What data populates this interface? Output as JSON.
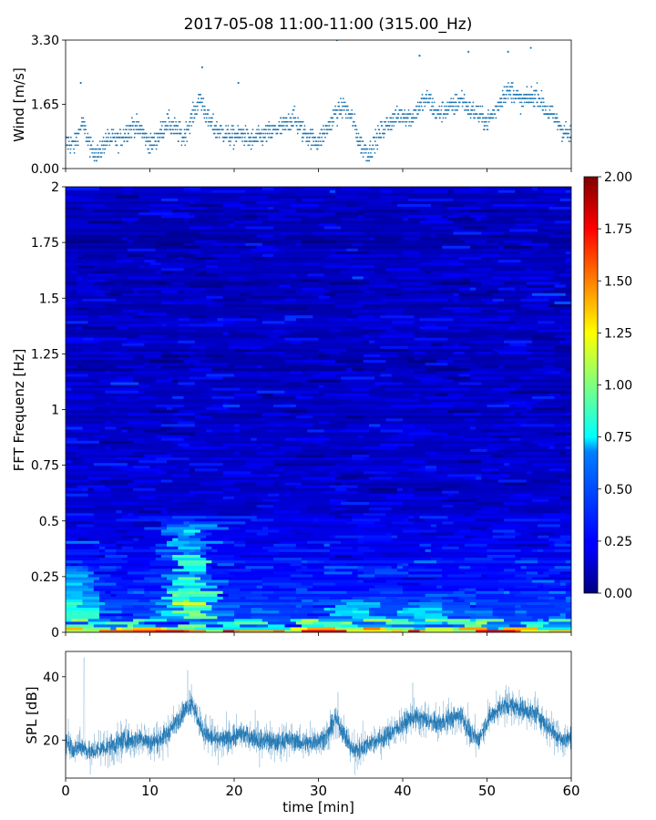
{
  "figure": {
    "title": "2017-05-08 11:00-11:00 (315.00_Hz)"
  },
  "chart_data": [
    {
      "id": "wind",
      "type": "scatter",
      "ylabel": "Wind [m/s]",
      "ylim": [
        0,
        3.3
      ],
      "xlim": [
        0,
        60
      ],
      "yticks": [
        "0.00",
        "1.65",
        "3.30"
      ],
      "marker_color": "#1f77b4",
      "trend": [
        [
          0,
          0.7
        ],
        [
          1,
          0.6
        ],
        [
          2,
          1.2
        ],
        [
          3,
          0.5
        ],
        [
          4,
          0.4
        ],
        [
          5,
          0.8
        ],
        [
          6,
          0.7
        ],
        [
          7,
          0.9
        ],
        [
          8,
          1.1
        ],
        [
          9,
          1.0
        ],
        [
          10,
          0.6
        ],
        [
          11,
          0.8
        ],
        [
          12,
          1.2
        ],
        [
          13,
          1.0
        ],
        [
          14,
          0.8
        ],
        [
          15,
          1.3
        ],
        [
          16,
          1.8
        ],
        [
          17,
          1.2
        ],
        [
          18,
          1.0
        ],
        [
          19,
          0.9
        ],
        [
          20,
          0.8
        ],
        [
          21,
          0.9
        ],
        [
          22,
          0.7
        ],
        [
          23,
          0.8
        ],
        [
          24,
          0.9
        ],
        [
          25,
          1.0
        ],
        [
          26,
          1.1
        ],
        [
          27,
          1.3
        ],
        [
          28,
          1.0
        ],
        [
          29,
          0.8
        ],
        [
          30,
          0.7
        ],
        [
          31,
          1.0
        ],
        [
          32,
          1.4
        ],
        [
          33,
          1.6
        ],
        [
          34,
          1.3
        ],
        [
          35,
          0.6
        ],
        [
          36,
          0.4
        ],
        [
          37,
          0.8
        ],
        [
          38,
          1.1
        ],
        [
          39,
          1.3
        ],
        [
          40,
          1.4
        ],
        [
          41,
          1.3
        ],
        [
          42,
          1.6
        ],
        [
          43,
          1.8
        ],
        [
          44,
          1.4
        ],
        [
          45,
          1.5
        ],
        [
          46,
          1.6
        ],
        [
          47,
          1.8
        ],
        [
          48,
          1.5
        ],
        [
          49,
          1.4
        ],
        [
          50,
          1.2
        ],
        [
          51,
          1.5
        ],
        [
          52,
          1.9
        ],
        [
          53,
          2.0
        ],
        [
          54,
          1.7
        ],
        [
          55,
          1.8
        ],
        [
          56,
          1.9
        ],
        [
          57,
          1.5
        ],
        [
          58,
          1.3
        ],
        [
          59,
          1.0
        ],
        [
          60,
          0.8
        ]
      ],
      "peaks": [
        [
          1.8,
          2.2
        ],
        [
          16.2,
          2.6
        ],
        [
          20.5,
          2.2
        ],
        [
          32.2,
          3.3
        ],
        [
          42,
          2.9
        ],
        [
          47.8,
          3.0
        ],
        [
          52.5,
          3.0
        ],
        [
          55.2,
          3.1
        ]
      ]
    },
    {
      "id": "spectrogram",
      "type": "heatmap",
      "ylabel": "FFT Frequenz [Hz]",
      "ylim": [
        0,
        2
      ],
      "xlim": [
        0,
        60
      ],
      "yticks": [
        "0",
        "0.25",
        "0.5",
        "0.75",
        "1",
        "1.25",
        "1.5",
        "1.75",
        "2"
      ],
      "colormap": "jet",
      "clim": [
        0,
        2
      ],
      "colorbar_ticks": [
        "0.00",
        "0.25",
        "0.50",
        "0.75",
        "1.00",
        "1.25",
        "1.50",
        "1.75",
        "2.00"
      ],
      "hotspots": [
        {
          "x": 13.5,
          "f_low": 0.0,
          "f_high": 0.5,
          "level": 1.0
        },
        {
          "x": 0.5,
          "f_low": 0.0,
          "f_high": 0.3,
          "level": 0.7
        },
        {
          "x": 33.0,
          "f_low": 0.0,
          "f_high": 0.15,
          "level": 0.8
        },
        {
          "x": 41.0,
          "f_low": 0.0,
          "f_high": 0.12,
          "level": 0.8
        }
      ]
    },
    {
      "id": "spl",
      "type": "line",
      "ylabel": "SPL [dB]",
      "xlabel": "time [min]",
      "ylim": [
        8,
        48
      ],
      "xlim": [
        0,
        60
      ],
      "yticks": [
        "20",
        "40"
      ],
      "xticks": [
        "0",
        "10",
        "20",
        "30",
        "40",
        "50",
        "60"
      ],
      "line_color": "#1f77b4",
      "trend": [
        [
          0,
          20
        ],
        [
          1,
          17
        ],
        [
          2,
          18
        ],
        [
          3,
          16
        ],
        [
          4,
          17
        ],
        [
          5,
          18
        ],
        [
          6,
          19
        ],
        [
          7,
          20
        ],
        [
          8,
          20
        ],
        [
          9,
          21
        ],
        [
          10,
          19
        ],
        [
          11,
          20
        ],
        [
          12,
          22
        ],
        [
          13,
          25
        ],
        [
          14,
          29
        ],
        [
          15,
          32
        ],
        [
          16,
          24
        ],
        [
          17,
          21
        ],
        [
          18,
          20
        ],
        [
          19,
          20
        ],
        [
          20,
          21
        ],
        [
          21,
          22
        ],
        [
          22,
          21
        ],
        [
          23,
          20
        ],
        [
          24,
          20
        ],
        [
          25,
          19
        ],
        [
          26,
          20
        ],
        [
          27,
          20
        ],
        [
          28,
          19
        ],
        [
          29,
          19
        ],
        [
          30,
          20
        ],
        [
          31,
          21
        ],
        [
          32,
          27
        ],
        [
          33,
          22
        ],
        [
          34,
          17
        ],
        [
          35,
          17
        ],
        [
          36,
          19
        ],
        [
          37,
          20
        ],
        [
          38,
          21
        ],
        [
          39,
          23
        ],
        [
          40,
          25
        ],
        [
          41,
          27
        ],
        [
          42,
          27
        ],
        [
          43,
          26
        ],
        [
          44,
          25
        ],
        [
          45,
          26
        ],
        [
          46,
          27
        ],
        [
          47,
          28
        ],
        [
          48,
          22
        ],
        [
          49,
          20
        ],
        [
          50,
          26
        ],
        [
          51,
          29
        ],
        [
          52,
          31
        ],
        [
          53,
          31
        ],
        [
          54,
          30
        ],
        [
          55,
          29
        ],
        [
          56,
          28
        ],
        [
          57,
          25
        ],
        [
          58,
          22
        ],
        [
          59,
          20
        ],
        [
          60,
          21
        ]
      ],
      "spikes": [
        [
          2.2,
          46
        ],
        [
          14.5,
          42
        ],
        [
          41.2,
          38
        ],
        [
          32.3,
          35
        ]
      ]
    }
  ]
}
